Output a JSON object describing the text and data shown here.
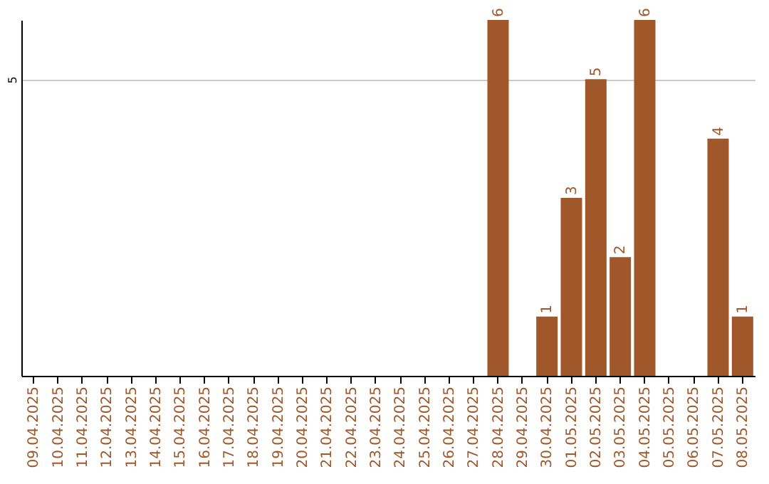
{
  "chart_data": {
    "type": "bar",
    "categories": [
      "09.04.2025",
      "10.04.2025",
      "11.04.2025",
      "12.04.2025",
      "13.04.2025",
      "14.04.2025",
      "15.04.2025",
      "16.04.2025",
      "17.04.2025",
      "18.04.2025",
      "19.04.2025",
      "20.04.2025",
      "21.04.2025",
      "22.04.2025",
      "23.04.2025",
      "24.04.2025",
      "25.04.2025",
      "26.04.2025",
      "27.04.2025",
      "28.04.2025",
      "29.04.2025",
      "30.04.2025",
      "01.05.2025",
      "02.05.2025",
      "03.05.2025",
      "04.05.2025",
      "05.05.2025",
      "06.05.2025",
      "07.05.2025",
      "08.05.2025"
    ],
    "values": [
      null,
      null,
      null,
      null,
      null,
      null,
      null,
      null,
      null,
      null,
      null,
      null,
      null,
      null,
      null,
      null,
      null,
      null,
      null,
      6,
      null,
      1,
      3,
      5,
      2,
      6,
      null,
      null,
      4,
      1
    ],
    "color": "#a0572a",
    "ylim": [
      0,
      6
    ],
    "yticks": [
      5
    ],
    "grid": "y",
    "data_labels": true
  }
}
